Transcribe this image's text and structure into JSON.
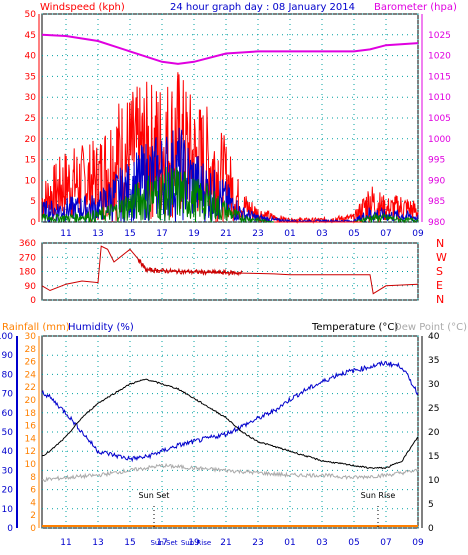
{
  "header": {
    "left": "Windspeed (kph)",
    "center": "24 hour graph day : 08 January 2014",
    "right": "Barometer (hpa)"
  },
  "x_ticks": [
    "11",
    "13",
    "15",
    "17",
    "19",
    "21",
    "23",
    "01",
    "03",
    "05",
    "07",
    "09"
  ],
  "colors": {
    "wind_avg": "#0000cc",
    "wind_gust": "#ff0000",
    "wind_low": "#008000",
    "barometer": "#e000e0",
    "direction": "#cc0000",
    "humidity": "#0000cc",
    "temperature": "#000000",
    "dewpoint": "#aaaaaa",
    "rainfall": "#ff8000",
    "grid": "#00a0a0",
    "axis_red": "#ff0000",
    "axis_magenta": "#e000e0",
    "axis_blue": "#0000cc",
    "axis_orange": "#ff8000",
    "axis_grey": "#aaaaaa"
  },
  "chart_data": [
    {
      "type": "line",
      "name": "wind_barometer",
      "ylabel_left": "Windspeed (kph)",
      "ylabel_right": "Barometer (hpa)",
      "y_left_ticks": [
        "0",
        "5",
        "10",
        "15",
        "20",
        "25",
        "30",
        "35",
        "40",
        "45",
        "50"
      ],
      "y_left_lim": [
        0,
        50
      ],
      "y_right_ticks": [
        "980",
        "985",
        "990",
        "995",
        "1000",
        "1005",
        "1010",
        "1015",
        "1020",
        "1025"
      ],
      "y_right_lim": [
        980,
        1030
      ],
      "x_hours": [
        9.5,
        33.0
      ],
      "barometer_points": [
        [
          9.5,
          1025
        ],
        [
          11,
          1024.7
        ],
        [
          13,
          1023.5
        ],
        [
          15,
          1021
        ],
        [
          17,
          1018.5
        ],
        [
          18,
          1018
        ],
        [
          19,
          1018.5
        ],
        [
          21,
          1020.5
        ],
        [
          23,
          1021
        ],
        [
          1,
          1021
        ],
        [
          3,
          1021
        ],
        [
          5,
          1021
        ],
        [
          6,
          1021.5
        ],
        [
          7,
          1022.5
        ],
        [
          9,
          1023
        ]
      ],
      "gust_envelope": [
        [
          9.5,
          10
        ],
        [
          11,
          18
        ],
        [
          13,
          20
        ],
        [
          14,
          30
        ],
        [
          15,
          32
        ],
        [
          16,
          34
        ],
        [
          17,
          35
        ],
        [
          18,
          38
        ],
        [
          19,
          30
        ],
        [
          20,
          28
        ],
        [
          21,
          20
        ],
        [
          22,
          8
        ],
        [
          23,
          4
        ],
        [
          24,
          2
        ],
        [
          1,
          1
        ],
        [
          3,
          1
        ],
        [
          5,
          2
        ],
        [
          6,
          10
        ],
        [
          7,
          6
        ],
        [
          8,
          7
        ],
        [
          9,
          5
        ]
      ],
      "avg_envelope": [
        [
          9.5,
          5
        ],
        [
          11,
          6
        ],
        [
          13,
          7
        ],
        [
          14,
          12
        ],
        [
          15,
          15
        ],
        [
          16,
          20
        ],
        [
          17,
          22
        ],
        [
          18,
          24
        ],
        [
          19,
          18
        ],
        [
          20,
          14
        ],
        [
          21,
          10
        ],
        [
          22,
          4
        ],
        [
          23,
          2
        ],
        [
          24,
          1
        ],
        [
          1,
          0.5
        ],
        [
          3,
          0.5
        ],
        [
          5,
          0.5
        ],
        [
          6,
          4
        ],
        [
          7,
          3
        ],
        [
          8,
          3
        ],
        [
          9,
          2
        ]
      ],
      "low_envelope": [
        [
          9.5,
          2
        ],
        [
          11,
          2
        ],
        [
          13,
          3
        ],
        [
          14,
          5
        ],
        [
          15,
          8
        ],
        [
          16,
          12
        ],
        [
          17,
          13
        ],
        [
          18,
          14
        ],
        [
          19,
          11
        ],
        [
          20,
          9
        ],
        [
          21,
          5
        ],
        [
          22,
          2
        ],
        [
          23,
          1
        ],
        [
          24,
          0
        ],
        [
          1,
          0
        ],
        [
          5,
          0
        ],
        [
          6,
          2
        ],
        [
          7,
          2
        ],
        [
          8,
          1
        ],
        [
          9,
          1
        ]
      ]
    },
    {
      "type": "line",
      "name": "wind_direction",
      "y_ticks": [
        "0",
        "90",
        "180",
        "270",
        "360"
      ],
      "y_lim": [
        0,
        360
      ],
      "direction_labels": [
        "N",
        "W",
        "S",
        "E",
        "N"
      ],
      "direction_points": [
        [
          9.5,
          90
        ],
        [
          10,
          60
        ],
        [
          11,
          100
        ],
        [
          12,
          120
        ],
        [
          13,
          110
        ],
        [
          13.2,
          340
        ],
        [
          13.6,
          320
        ],
        [
          14,
          240
        ],
        [
          15,
          320
        ],
        [
          15.5,
          260
        ],
        [
          16,
          190
        ],
        [
          17,
          185
        ],
        [
          18,
          180
        ],
        [
          20,
          175
        ],
        [
          22,
          170
        ],
        [
          24,
          165
        ],
        [
          1,
          160
        ],
        [
          3,
          160
        ],
        [
          5,
          160
        ],
        [
          6,
          160
        ],
        [
          6.2,
          40
        ],
        [
          7,
          90
        ],
        [
          9,
          100
        ]
      ]
    },
    {
      "type": "line",
      "name": "temp_humidity",
      "header_left_rain": "Rainfall (mm)",
      "header_left_hum": "Humidity (%)",
      "header_right_temp": "Temperature (°C)",
      "header_right_dew": "Dew Point (°C)",
      "humidity_ticks": [
        "0",
        "10",
        "20",
        "30",
        "40",
        "50",
        "60",
        "70",
        "80",
        "90",
        "100"
      ],
      "rain_ticks": [
        "0",
        "2",
        "4",
        "6",
        "8",
        "10",
        "12",
        "14",
        "16",
        "18",
        "20",
        "22",
        "24",
        "26",
        "28",
        "30"
      ],
      "temp_ticks": [
        "0",
        "5",
        "10",
        "15",
        "20",
        "25",
        "30",
        "35",
        "40"
      ],
      "humidity_lim": [
        0,
        100
      ],
      "temp_lim": [
        0,
        40
      ],
      "humidity_points": [
        [
          9.5,
          71
        ],
        [
          10,
          68
        ],
        [
          11,
          60
        ],
        [
          12,
          50
        ],
        [
          13,
          40
        ],
        [
          14,
          38
        ],
        [
          15,
          36
        ],
        [
          16,
          37
        ],
        [
          17,
          40
        ],
        [
          18,
          43
        ],
        [
          19,
          45
        ],
        [
          20,
          47
        ],
        [
          21,
          49
        ],
        [
          22,
          53
        ],
        [
          23,
          57
        ],
        [
          24,
          61
        ],
        [
          1,
          67
        ],
        [
          2,
          72
        ],
        [
          3,
          76
        ],
        [
          4,
          80
        ],
        [
          5,
          82
        ],
        [
          6,
          84
        ],
        [
          7,
          86
        ],
        [
          8,
          84
        ],
        [
          9,
          70
        ]
      ],
      "temperature_points": [
        [
          9.5,
          15
        ],
        [
          10,
          16
        ],
        [
          11,
          19
        ],
        [
          12,
          23
        ],
        [
          13,
          26
        ],
        [
          14,
          28
        ],
        [
          15,
          30
        ],
        [
          16,
          31
        ],
        [
          17,
          30
        ],
        [
          18,
          29
        ],
        [
          19,
          27
        ],
        [
          20,
          25
        ],
        [
          21,
          23
        ],
        [
          22,
          20
        ],
        [
          23,
          18
        ],
        [
          24,
          17
        ],
        [
          1,
          16
        ],
        [
          2,
          15
        ],
        [
          3,
          14
        ],
        [
          4,
          13.5
        ],
        [
          5,
          13
        ],
        [
          6,
          12.5
        ],
        [
          7,
          12.5
        ],
        [
          8,
          14
        ],
        [
          9,
          19
        ]
      ],
      "dewpoint_points": [
        [
          9.5,
          10
        ],
        [
          11,
          10.5
        ],
        [
          13,
          11
        ],
        [
          15,
          12
        ],
        [
          17,
          13
        ],
        [
          19,
          12.5
        ],
        [
          21,
          12
        ],
        [
          23,
          11.5
        ],
        [
          1,
          11
        ],
        [
          3,
          11
        ],
        [
          5,
          10.5
        ],
        [
          7,
          11
        ],
        [
          9,
          12
        ]
      ],
      "rainfall_points": [
        [
          9.5,
          0
        ],
        [
          9,
          0
        ]
      ],
      "annotations": [
        {
          "label": "Sun Set",
          "hour": 16.5
        },
        {
          "label": "Sun Rise",
          "hour": 6.5
        }
      ],
      "x_extra_labels": [
        "Sun Set",
        "Sun Rise"
      ]
    }
  ]
}
